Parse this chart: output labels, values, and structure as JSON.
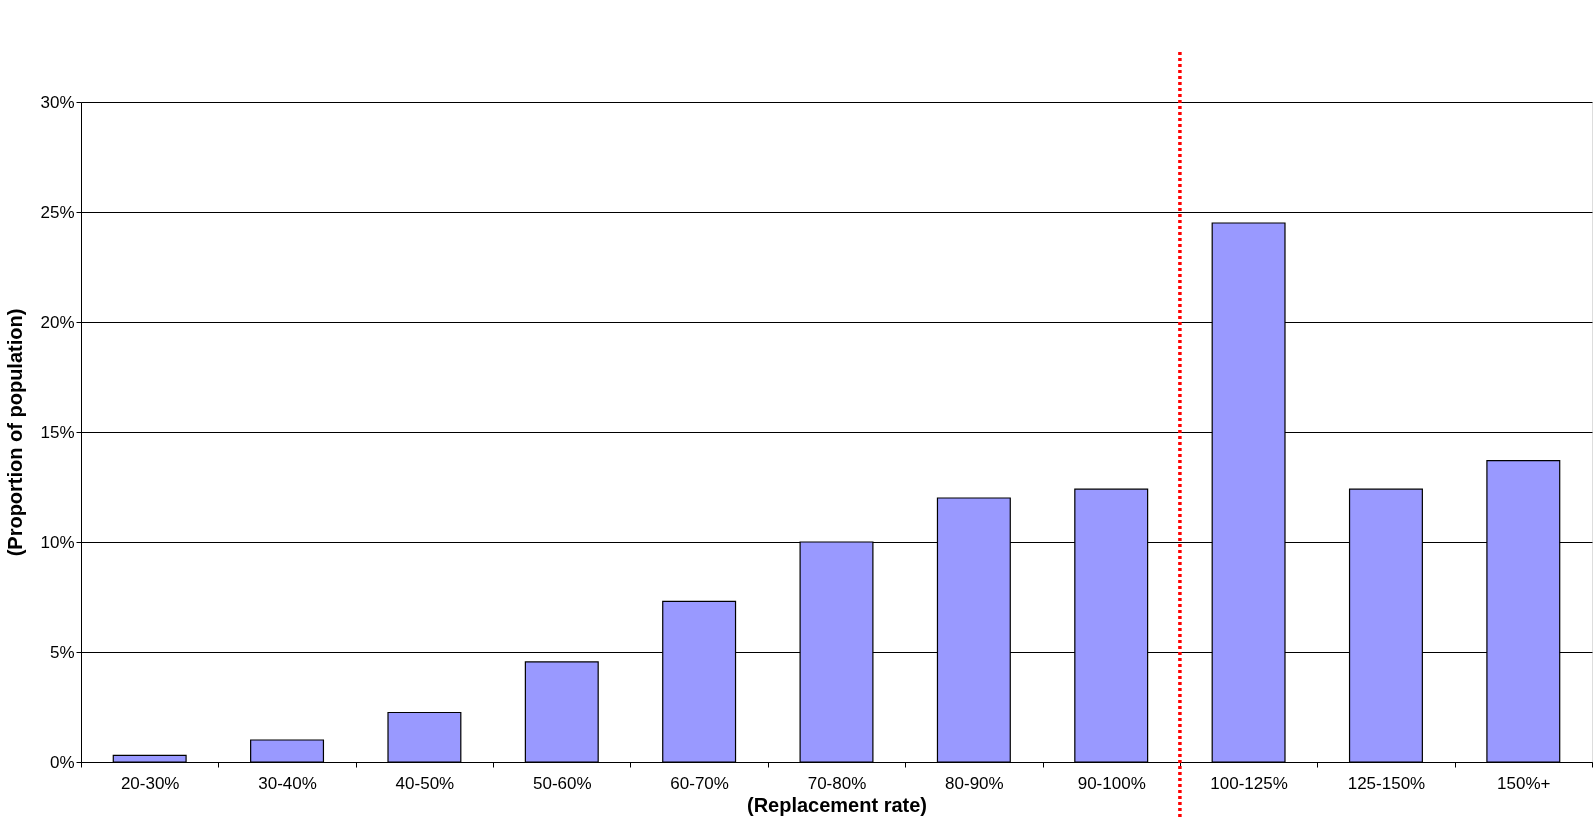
{
  "chart_data": {
    "type": "bar",
    "xlabel": "(Replacement rate)",
    "ylabel": "(Proportion of population)",
    "categories": [
      "20-30%",
      "30-40%",
      "40-50%",
      "50-60%",
      "60-70%",
      "70-80%",
      "80-90%",
      "90-100%",
      "100-125%",
      "125-150%",
      "150%+"
    ],
    "series": [
      {
        "color": "#9999ff",
        "values": [
          0.3,
          1.0,
          2.25,
          4.55,
          7.3,
          10.0,
          12.0,
          12.4,
          24.5,
          12.4,
          13.7
        ]
      }
    ],
    "ylim": [
      0,
      30
    ],
    "yticks": [
      {
        "value": 0,
        "label": "0%"
      },
      {
        "value": 5,
        "label": "5%"
      },
      {
        "value": 10,
        "label": "10%"
      },
      {
        "value": 15,
        "label": "15%"
      },
      {
        "value": 20,
        "label": "20%"
      },
      {
        "value": 25,
        "label": "25%"
      },
      {
        "value": 30,
        "label": "30%"
      }
    ],
    "grid": "y",
    "legend": false,
    "ref_lines": [
      {
        "axis": "x",
        "value": "100-125%",
        "color": "#ff0000",
        "line_style": "dotted"
      }
    ]
  }
}
